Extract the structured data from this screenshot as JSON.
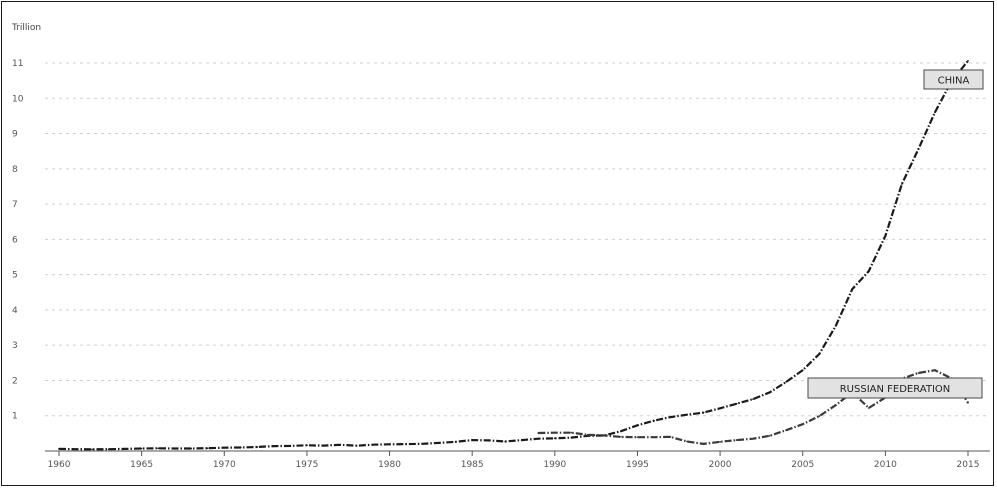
{
  "chart_data": {
    "type": "line",
    "title": "",
    "xlabel": "",
    "ylabel": "Trillion",
    "xlim": [
      1960,
      2016
    ],
    "ylim": [
      0,
      11.5
    ],
    "x_ticks": [
      "1960",
      "1965",
      "1970",
      "1975",
      "1980",
      "1985",
      "1990",
      "1995",
      "2000",
      "2005",
      "2010",
      "2015"
    ],
    "y_ticks": [
      "1",
      "2",
      "3",
      "4",
      "5",
      "6",
      "7",
      "8",
      "9",
      "10",
      "11"
    ],
    "grid": "horizontal-dotted",
    "series": [
      {
        "name": "CHINA",
        "color": "#1a1a1a",
        "x": [
          1960,
          1961,
          1962,
          1963,
          1964,
          1965,
          1966,
          1967,
          1968,
          1969,
          1970,
          1971,
          1972,
          1973,
          1974,
          1975,
          1976,
          1977,
          1978,
          1979,
          1980,
          1981,
          1982,
          1983,
          1984,
          1985,
          1986,
          1987,
          1988,
          1989,
          1990,
          1991,
          1992,
          1993,
          1994,
          1995,
          1996,
          1997,
          1998,
          1999,
          2000,
          2001,
          2002,
          2003,
          2004,
          2005,
          2006,
          2007,
          2008,
          2009,
          2010,
          2011,
          2012,
          2013,
          2014,
          2015
        ],
        "values": [
          0.06,
          0.05,
          0.047,
          0.05,
          0.059,
          0.07,
          0.076,
          0.072,
          0.07,
          0.079,
          0.093,
          0.1,
          0.114,
          0.139,
          0.144,
          0.163,
          0.154,
          0.175,
          0.15,
          0.178,
          0.191,
          0.196,
          0.205,
          0.23,
          0.26,
          0.31,
          0.3,
          0.27,
          0.31,
          0.35,
          0.36,
          0.38,
          0.43,
          0.44,
          0.56,
          0.73,
          0.86,
          0.96,
          1.03,
          1.09,
          1.21,
          1.34,
          1.47,
          1.66,
          1.96,
          2.29,
          2.75,
          3.55,
          4.59,
          5.1,
          6.1,
          7.57,
          8.56,
          9.6,
          10.48,
          11.06
        ]
      },
      {
        "name": "RUSSIAN FEDERATION",
        "color": "#3a3a3a",
        "x": [
          1989,
          1990,
          1991,
          1992,
          1993,
          1994,
          1995,
          1996,
          1997,
          1998,
          1999,
          2000,
          2001,
          2002,
          2003,
          2004,
          2005,
          2006,
          2007,
          2008,
          2009,
          2010,
          2011,
          2012,
          2013,
          2014,
          2015
        ],
        "values": [
          0.51,
          0.52,
          0.52,
          0.46,
          0.44,
          0.4,
          0.39,
          0.39,
          0.4,
          0.27,
          0.2,
          0.26,
          0.31,
          0.35,
          0.43,
          0.59,
          0.76,
          0.99,
          1.3,
          1.66,
          1.22,
          1.52,
          2.05,
          2.21,
          2.29,
          2.06,
          1.37
        ]
      }
    ],
    "annotations": [
      "CHINA",
      "RUSSIAN FEDERATION"
    ]
  }
}
